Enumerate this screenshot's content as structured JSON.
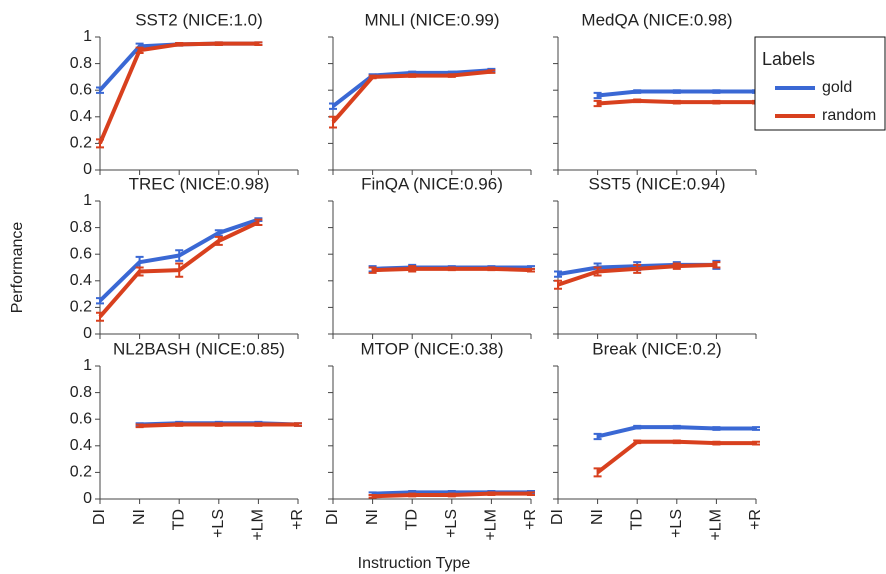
{
  "chart_data": [
    {
      "type": "line",
      "title": "SST2 (NICE:1.0)",
      "ylim": [
        0,
        1
      ],
      "yticks": [
        0,
        0.2,
        0.4,
        0.6,
        0.8,
        1
      ],
      "series": [
        {
          "name": "gold",
          "color": "#3a68d4",
          "values": [
            0.6,
            0.93,
            0.945,
            0.95,
            0.95,
            null
          ],
          "errors": [
            0.02,
            0.02,
            0.01,
            0.01,
            0.01,
            null
          ]
        },
        {
          "name": "random",
          "color": "#d8401e",
          "values": [
            0.2,
            0.9,
            0.945,
            0.95,
            0.95,
            null
          ],
          "errors": [
            0.03,
            0.02,
            0.01,
            0.01,
            0.01,
            null
          ]
        }
      ]
    },
    {
      "type": "line",
      "title": "MNLI (NICE:0.99)",
      "ylim": [
        0,
        1
      ],
      "yticks": [
        0,
        0.2,
        0.4,
        0.6,
        0.8,
        1
      ],
      "series": [
        {
          "name": "gold",
          "color": "#3a68d4",
          "values": [
            0.48,
            0.71,
            0.73,
            0.73,
            0.75,
            null
          ],
          "errors": [
            0.02,
            0.01,
            0.01,
            0.01,
            0.01,
            null
          ]
        },
        {
          "name": "random",
          "color": "#d8401e",
          "values": [
            0.36,
            0.7,
            0.71,
            0.71,
            0.74,
            null
          ],
          "errors": [
            0.04,
            0.01,
            0.01,
            0.01,
            0.01,
            null
          ]
        }
      ]
    },
    {
      "type": "line",
      "title": "MedQA (NICE:0.98)",
      "legend_title": "Labels",
      "legend": "right",
      "ylim": [
        0,
        1
      ],
      "yticks": [
        0,
        0.2,
        0.4,
        0.6,
        0.8,
        1
      ],
      "series": [
        {
          "name": "gold",
          "color": "#3a68d4",
          "values": [
            null,
            0.56,
            0.59,
            0.59,
            0.59,
            0.59
          ],
          "errors": [
            null,
            0.02,
            0.01,
            0.01,
            0.01,
            0.01
          ]
        },
        {
          "name": "random",
          "color": "#d8401e",
          "values": [
            null,
            0.5,
            0.52,
            0.51,
            0.51,
            0.51
          ],
          "errors": [
            null,
            0.02,
            0.01,
            0.01,
            0.01,
            0.01
          ]
        }
      ]
    },
    {
      "type": "line",
      "title": "TREC (NICE:0.98)",
      "y_label": "Performance",
      "ylim": [
        0,
        1
      ],
      "yticks": [
        0,
        0.2,
        0.4,
        0.6,
        0.8,
        1
      ],
      "series": [
        {
          "name": "gold",
          "color": "#3a68d4",
          "values": [
            0.25,
            0.54,
            0.59,
            0.76,
            0.86,
            null
          ],
          "errors": [
            0.02,
            0.04,
            0.04,
            0.02,
            0.01,
            null
          ]
        },
        {
          "name": "random",
          "color": "#d8401e",
          "values": [
            0.13,
            0.47,
            0.48,
            0.7,
            0.84,
            null
          ],
          "errors": [
            0.03,
            0.03,
            0.05,
            0.03,
            0.02,
            null
          ]
        }
      ]
    },
    {
      "type": "line",
      "title": "FinQA (NICE:0.96)",
      "ylim": [
        0,
        1
      ],
      "yticks": [
        0,
        0.2,
        0.4,
        0.6,
        0.8,
        1
      ],
      "series": [
        {
          "name": "gold",
          "color": "#3a68d4",
          "values": [
            null,
            0.49,
            0.5,
            0.5,
            0.5,
            0.5
          ],
          "errors": [
            null,
            0.02,
            0.02,
            0.01,
            0.01,
            0.01
          ]
        },
        {
          "name": "random",
          "color": "#d8401e",
          "values": [
            null,
            0.48,
            0.49,
            0.49,
            0.49,
            0.48
          ],
          "errors": [
            null,
            0.02,
            0.02,
            0.01,
            0.01,
            0.01
          ]
        }
      ]
    },
    {
      "type": "line",
      "title": "SST5 (NICE:0.94)",
      "ylim": [
        0,
        1
      ],
      "yticks": [
        0,
        0.2,
        0.4,
        0.6,
        0.8,
        1
      ],
      "series": [
        {
          "name": "gold",
          "color": "#3a68d4",
          "values": [
            0.45,
            0.5,
            0.51,
            0.52,
            0.52,
            null
          ],
          "errors": [
            0.02,
            0.03,
            0.03,
            0.02,
            0.03,
            null
          ]
        },
        {
          "name": "random",
          "color": "#d8401e",
          "values": [
            0.37,
            0.47,
            0.49,
            0.51,
            0.52,
            null
          ],
          "errors": [
            0.03,
            0.03,
            0.03,
            0.02,
            0.02,
            null
          ]
        }
      ]
    },
    {
      "type": "line",
      "title": "NL2BASH (NICE:0.85)",
      "categories": [
        "DI",
        "NI",
        "TD",
        "+LS",
        "+LM",
        "+R"
      ],
      "ylim": [
        0,
        1
      ],
      "yticks": [
        0,
        0.2,
        0.4,
        0.6,
        0.8,
        1
      ],
      "series": [
        {
          "name": "gold",
          "color": "#3a68d4",
          "values": [
            null,
            0.56,
            0.57,
            0.57,
            0.57,
            0.56
          ],
          "errors": [
            null,
            0.01,
            0.01,
            0.01,
            0.01,
            0.01
          ]
        },
        {
          "name": "random",
          "color": "#d8401e",
          "values": [
            null,
            0.55,
            0.56,
            0.56,
            0.56,
            0.56
          ],
          "errors": [
            null,
            0.01,
            0.01,
            0.01,
            0.01,
            0.01
          ]
        }
      ]
    },
    {
      "type": "line",
      "title": "MTOP (NICE:0.38)",
      "x_label": "Instruction Type",
      "categories": [
        "DI",
        "NI",
        "TD",
        "+LS",
        "+LM",
        "+R"
      ],
      "ylim": [
        0,
        1
      ],
      "yticks": [
        0,
        0.2,
        0.4,
        0.6,
        0.8,
        1
      ],
      "series": [
        {
          "name": "gold",
          "color": "#3a68d4",
          "values": [
            null,
            0.04,
            0.05,
            0.05,
            0.05,
            0.05
          ],
          "errors": [
            null,
            0.01,
            0.01,
            0.01,
            0.01,
            0.01
          ]
        },
        {
          "name": "random",
          "color": "#d8401e",
          "values": [
            null,
            0.02,
            0.03,
            0.03,
            0.04,
            0.04
          ],
          "errors": [
            null,
            0.01,
            0.01,
            0.01,
            0.01,
            0.01
          ]
        }
      ]
    },
    {
      "type": "line",
      "title": "Break (NICE:0.2)",
      "categories": [
        "DI",
        "NI",
        "TD",
        "+LS",
        "+LM",
        "+R"
      ],
      "ylim": [
        0,
        1
      ],
      "yticks": [
        0,
        0.2,
        0.4,
        0.6,
        0.8,
        1
      ],
      "series": [
        {
          "name": "gold",
          "color": "#3a68d4",
          "values": [
            null,
            0.47,
            0.54,
            0.54,
            0.53,
            0.53
          ],
          "errors": [
            null,
            0.02,
            0.01,
            0.01,
            0.01,
            0.01
          ]
        },
        {
          "name": "random",
          "color": "#d8401e",
          "values": [
            null,
            0.2,
            0.43,
            0.43,
            0.42,
            0.42
          ],
          "errors": [
            null,
            0.03,
            0.01,
            0.01,
            0.01,
            0.01
          ]
        }
      ]
    }
  ]
}
